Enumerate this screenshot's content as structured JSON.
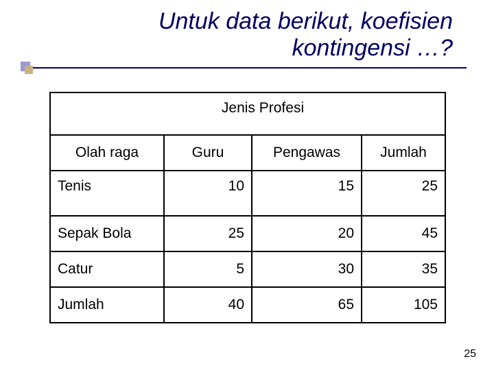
{
  "title": {
    "line1": "Untuk data berikut, koefisien",
    "line2": "kontingensi …?"
  },
  "table": {
    "superheader": "Jenis Profesi",
    "columns": [
      "Olah raga",
      "Guru",
      "Pengawas",
      "Jumlah"
    ],
    "rows": [
      {
        "label": "Tenis",
        "guru": "10",
        "pengawas": "15",
        "jumlah": "25"
      },
      {
        "label": "Sepak Bola",
        "guru": "25",
        "pengawas": "20",
        "jumlah": "45"
      },
      {
        "label": "Catur",
        "guru": "5",
        "pengawas": "30",
        "jumlah": "35"
      },
      {
        "label": "Jumlah",
        "guru": "40",
        "pengawas": "65",
        "jumlah": "105"
      }
    ]
  },
  "page_number": "25",
  "colors": {
    "title_color": "#000060",
    "line_color": "#000060",
    "border_color": "#000000",
    "bg": "#ffffff",
    "accent1": "#9a9ad6",
    "accent2": "#c7b183"
  }
}
